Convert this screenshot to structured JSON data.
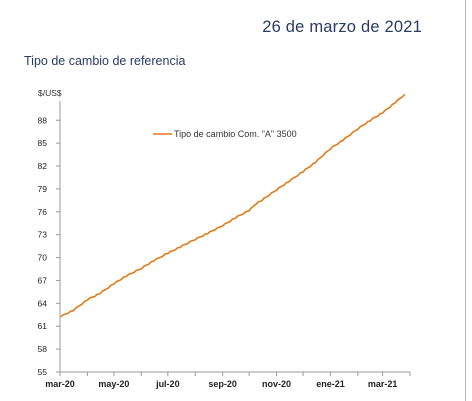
{
  "header": {
    "date": "26 de marzo de 2021"
  },
  "chart_data": {
    "type": "line",
    "title": "Tipo de cambio de referencia",
    "unit_label": "$/US$",
    "xlabel": "",
    "ylabel": "",
    "ylim": [
      55,
      90
    ],
    "y_ticks": [
      55,
      58,
      61,
      64,
      67,
      70,
      73,
      76,
      79,
      82,
      85,
      88
    ],
    "x_tick_labels": [
      "mar-20",
      "may-20",
      "jul-20",
      "sep-20",
      "nov-20",
      "ene-21",
      "mar-21"
    ],
    "x_tick_dates": [
      "2020-03-01",
      "2020-05-01",
      "2020-07-01",
      "2020-09-01",
      "2020-11-01",
      "2021-01-01",
      "2021-03-01"
    ],
    "grid": false,
    "legend_position": "top-center",
    "series": [
      {
        "name": "Tipo de cambio Com. \"A\" 3500",
        "color": "#e07b1a",
        "x": [
          "2020-03-02",
          "2020-03-16",
          "2020-04-01",
          "2020-04-15",
          "2020-05-01",
          "2020-05-15",
          "2020-06-01",
          "2020-06-15",
          "2020-07-01",
          "2020-07-15",
          "2020-08-01",
          "2020-08-15",
          "2020-09-01",
          "2020-09-15",
          "2020-10-01",
          "2020-10-09",
          "2020-10-15",
          "2020-11-01",
          "2020-11-15",
          "2020-12-01",
          "2020-12-15",
          "2021-01-01",
          "2021-01-15",
          "2021-02-01",
          "2021-02-15",
          "2021-03-01",
          "2021-03-15",
          "2021-03-26"
        ],
        "values": [
          62.3,
          63.1,
          64.5,
          65.3,
          66.6,
          67.6,
          68.6,
          69.6,
          70.6,
          71.4,
          72.4,
          73.2,
          74.2,
          75.2,
          76.2,
          77.1,
          77.5,
          78.9,
          80.0,
          81.3,
          82.5,
          84.3,
          85.4,
          86.9,
          88.0,
          89.0,
          90.3,
          91.4
        ]
      }
    ]
  },
  "icons": {
    "legend_line": "orange-line-swatch"
  }
}
